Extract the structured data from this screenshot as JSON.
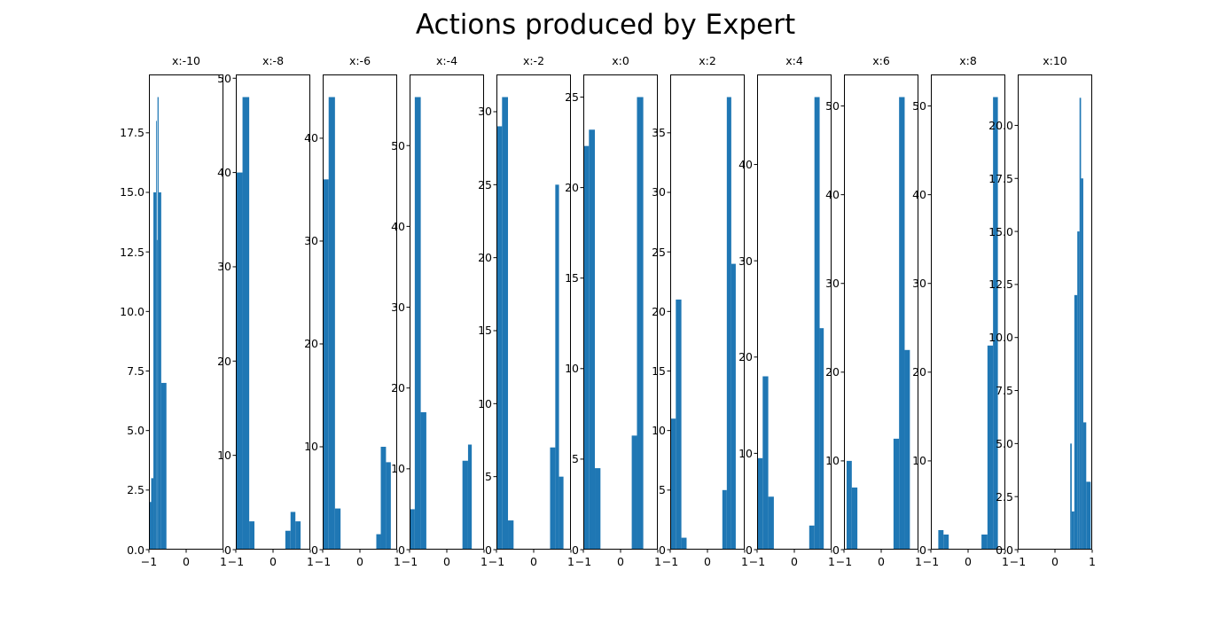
{
  "figure": {
    "title": "Actions produced by Expert",
    "background_color": "#ffffff",
    "bar_color": "#1f77b4",
    "spine_color": "#000000",
    "text_color": "#000000"
  },
  "chart_data": {
    "type": "bar",
    "subtype": "histogram-grid",
    "title": "Actions produced by Expert",
    "layout_hint": "single row of 11 histogram subplots, no grid lines, black box spines, ticks outside on left and bottom only",
    "x_range": [
      -1,
      1
    ],
    "x_tick_values": [
      -1,
      0,
      1
    ],
    "x_tick_labels": [
      "−1",
      "0",
      "1"
    ],
    "subplots": [
      {
        "title": "x:-10",
        "ylim": [
          0,
          19.95
        ],
        "y_tick_values": [
          0,
          2.5,
          5,
          7.5,
          10,
          12.5,
          15,
          17.5
        ],
        "y_tick_labels": [
          "0.0",
          "2.5",
          "5.0",
          "7.5",
          "10.0",
          "12.5",
          "15.0",
          "17.5"
        ],
        "bars": [
          [
            -1.0,
            -0.94,
            2
          ],
          [
            -0.94,
            -0.88,
            3
          ],
          [
            -0.88,
            -0.81,
            15
          ],
          [
            -0.81,
            -0.79,
            18
          ],
          [
            -0.79,
            -0.77,
            13
          ],
          [
            -0.77,
            -0.74,
            19
          ],
          [
            -0.74,
            -0.67,
            15
          ],
          [
            -0.67,
            -0.53,
            7
          ]
        ]
      },
      {
        "title": "x:-8",
        "ylim": [
          0,
          50.4
        ],
        "y_tick_values": [
          0,
          10,
          20,
          30,
          40,
          50
        ],
        "y_tick_labels": [
          "0",
          "10",
          "20",
          "30",
          "40",
          "50"
        ],
        "bars": [
          [
            -1.0,
            -0.82,
            40
          ],
          [
            -0.82,
            -0.64,
            48
          ],
          [
            -0.64,
            -0.5,
            3
          ],
          [
            0.33,
            0.47,
            2
          ],
          [
            0.47,
            0.6,
            4
          ],
          [
            0.6,
            0.74,
            3
          ]
        ]
      },
      {
        "title": "x:-6",
        "ylim": [
          0,
          46.2
        ],
        "y_tick_values": [
          0,
          10,
          20,
          30,
          40
        ],
        "y_tick_labels": [
          "0",
          "10",
          "20",
          "30",
          "40"
        ],
        "bars": [
          [
            -1.0,
            -0.84,
            36
          ],
          [
            -0.84,
            -0.67,
            44
          ],
          [
            -0.67,
            -0.52,
            4
          ],
          [
            0.44,
            0.56,
            1.5
          ],
          [
            0.56,
            0.7,
            10
          ],
          [
            0.7,
            0.83,
            8.5
          ]
        ]
      },
      {
        "title": "x:-4",
        "ylim": [
          0,
          58.8
        ],
        "y_tick_values": [
          0,
          10,
          20,
          30,
          40,
          50
        ],
        "y_tick_labels": [
          "0",
          "10",
          "20",
          "30",
          "40",
          "50"
        ],
        "bars": [
          [
            -1.0,
            -0.86,
            5
          ],
          [
            -0.86,
            -0.7,
            56
          ],
          [
            -0.7,
            -0.55,
            17
          ],
          [
            0.42,
            0.57,
            11
          ],
          [
            0.57,
            0.67,
            13
          ]
        ]
      },
      {
        "title": "x:-2",
        "ylim": [
          0,
          32.55
        ],
        "y_tick_values": [
          0,
          5,
          10,
          15,
          20,
          25,
          30
        ],
        "y_tick_labels": [
          "0",
          "5",
          "10",
          "15",
          "20",
          "25",
          "30"
        ],
        "bars": [
          [
            -1.0,
            -0.85,
            29
          ],
          [
            -0.85,
            -0.69,
            31
          ],
          [
            -0.69,
            -0.54,
            2
          ],
          [
            0.44,
            0.58,
            7
          ],
          [
            0.58,
            0.68,
            25
          ],
          [
            0.68,
            0.8,
            5
          ]
        ]
      },
      {
        "title": "x:0",
        "ylim": [
          0,
          26.25
        ],
        "y_tick_values": [
          0,
          5,
          10,
          15,
          20,
          25
        ],
        "y_tick_labels": [
          "0",
          "5",
          "10",
          "15",
          "20",
          "25"
        ],
        "bars": [
          [
            -1.0,
            -0.85,
            22.3
          ],
          [
            -0.85,
            -0.69,
            23.2
          ],
          [
            -0.69,
            -0.54,
            4.5
          ],
          [
            0.3,
            0.44,
            6.3
          ],
          [
            0.44,
            0.61,
            25
          ]
        ]
      },
      {
        "title": "x:2",
        "ylim": [
          0,
          39.9
        ],
        "y_tick_values": [
          0,
          5,
          10,
          15,
          20,
          25,
          30,
          35
        ],
        "y_tick_labels": [
          "0",
          "5",
          "10",
          "15",
          "20",
          "25",
          "30",
          "35"
        ],
        "bars": [
          [
            -1.0,
            -0.85,
            11
          ],
          [
            -0.85,
            -0.7,
            21
          ],
          [
            -0.7,
            -0.56,
            1
          ],
          [
            0.4,
            0.52,
            5
          ],
          [
            0.52,
            0.64,
            38
          ],
          [
            0.64,
            0.76,
            24
          ]
        ]
      },
      {
        "title": "x:4",
        "ylim": [
          0,
          49.35
        ],
        "y_tick_values": [
          0,
          10,
          20,
          30,
          40
        ],
        "y_tick_labels": [
          "0",
          "10",
          "20",
          "30",
          "40"
        ],
        "bars": [
          [
            -1.0,
            -0.85,
            9.5
          ],
          [
            -0.85,
            -0.7,
            18
          ],
          [
            -0.7,
            -0.55,
            5.5
          ],
          [
            0.4,
            0.54,
            2.5
          ],
          [
            0.54,
            0.68,
            47
          ],
          [
            0.68,
            0.79,
            23
          ]
        ]
      },
      {
        "title": "x:6",
        "ylim": [
          0,
          53.55
        ],
        "y_tick_values": [
          0,
          10,
          20,
          30,
          40,
          50
        ],
        "y_tick_labels": [
          "0",
          "10",
          "20",
          "30",
          "40",
          "50"
        ],
        "bars": [
          [
            -0.93,
            -0.79,
            10
          ],
          [
            -0.79,
            -0.64,
            7
          ],
          [
            0.33,
            0.48,
            12.5
          ],
          [
            0.48,
            0.63,
            51
          ],
          [
            0.63,
            0.77,
            22.5
          ]
        ]
      },
      {
        "title": "x:8",
        "ylim": [
          0,
          53.55
        ],
        "y_tick_values": [
          0,
          10,
          20,
          30,
          40,
          50
        ],
        "y_tick_labels": [
          "0",
          "10",
          "20",
          "30",
          "40",
          "50"
        ],
        "bars": [
          [
            -0.8,
            -0.66,
            2.2
          ],
          [
            -0.66,
            -0.52,
            1.7
          ],
          [
            0.36,
            0.52,
            1.7
          ],
          [
            0.52,
            0.67,
            23
          ],
          [
            0.67,
            0.8,
            51
          ]
        ]
      },
      {
        "title": "x:10",
        "ylim": [
          0,
          22.4
        ],
        "y_tick_values": [
          0,
          2.5,
          5,
          7.5,
          10,
          12.5,
          15,
          17.5,
          20
        ],
        "y_tick_labels": [
          "0.0",
          "2.5",
          "5.0",
          "7.5",
          "10.0",
          "12.5",
          "15.0",
          "17.5",
          "20.0"
        ],
        "bars": [
          [
            0.41,
            0.45,
            5
          ],
          [
            0.45,
            0.52,
            1.8
          ],
          [
            0.52,
            0.6,
            12
          ],
          [
            0.6,
            0.66,
            15
          ],
          [
            0.66,
            0.7,
            21.3
          ],
          [
            0.7,
            0.76,
            17.5
          ],
          [
            0.76,
            0.84,
            6
          ],
          [
            0.84,
            0.96,
            3.2
          ]
        ]
      }
    ]
  }
}
